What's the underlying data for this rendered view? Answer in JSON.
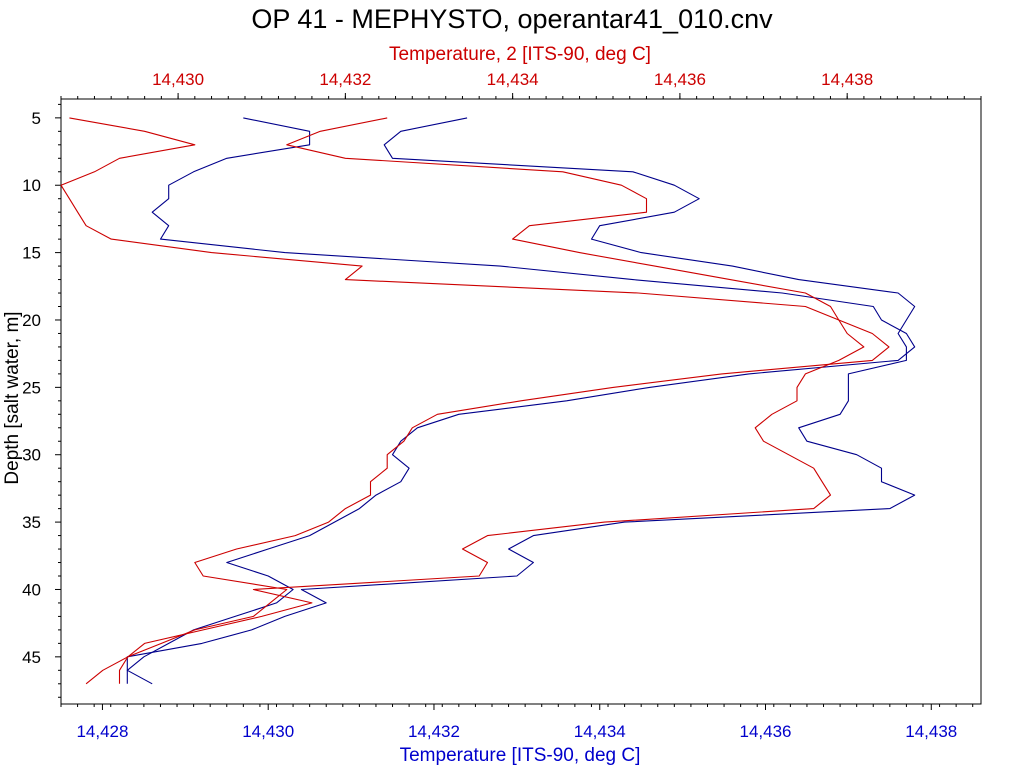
{
  "colors": {
    "background": "#ffffff",
    "axis": "#000000",
    "series1": "#00008b",
    "series2": "#cc0000",
    "bottom_axis_text": "#0000cc",
    "top_axis_text": "#cc0000"
  },
  "chart_data": {
    "type": "line",
    "title": "OP 41 - MEPHYSTO, operantar41_010.cnv",
    "ylabel": "Depth [salt water, m]",
    "x_bottom_label": "Temperature [ITS-90, deg C]",
    "x_top_label": "Temperature, 2 [ITS-90, deg C]",
    "y_reversed": true,
    "ylim": [
      3.6,
      48.5
    ],
    "xlim_bottom": [
      14.4275,
      14.4386
    ],
    "xlim_top": [
      14.4286,
      14.4396
    ],
    "y_ticks": [
      5,
      10,
      15,
      20,
      25,
      30,
      35,
      40,
      45
    ],
    "y_tick_labels": [
      "5",
      "10",
      "15",
      "20",
      "25",
      "30",
      "35",
      "40",
      "45"
    ],
    "x_bottom_ticks": [
      14.428,
      14.43,
      14.432,
      14.434,
      14.436,
      14.438
    ],
    "x_bottom_tick_labels": [
      "14,428",
      "14,430",
      "14,432",
      "14,434",
      "14,436",
      "14,438"
    ],
    "x_top_ticks": [
      14.43,
      14.432,
      14.434,
      14.436,
      14.438
    ],
    "x_top_tick_labels": [
      "14,430",
      "14,432",
      "14,434",
      "14,436",
      "14,438"
    ],
    "series": [
      {
        "axis": "bottom",
        "color": "#00008b",
        "points": [
          [
            14.4324,
            5
          ],
          [
            14.4316,
            6
          ],
          [
            14.4314,
            7
          ],
          [
            14.4315,
            8
          ],
          [
            14.4344,
            9
          ],
          [
            14.4349,
            10
          ],
          [
            14.4352,
            11
          ],
          [
            14.4349,
            12
          ],
          [
            14.434,
            13
          ],
          [
            14.4339,
            14
          ],
          [
            14.4345,
            15
          ],
          [
            14.4356,
            16
          ],
          [
            14.4364,
            17
          ],
          [
            14.4376,
            18
          ],
          [
            14.4378,
            19
          ],
          [
            14.4377,
            20
          ],
          [
            14.4376,
            21
          ],
          [
            14.4377,
            22
          ],
          [
            14.4377,
            23
          ],
          [
            14.437,
            24
          ],
          [
            14.437,
            25
          ],
          [
            14.437,
            26
          ],
          [
            14.4369,
            27
          ],
          [
            14.4364,
            28
          ],
          [
            14.4365,
            29
          ],
          [
            14.4371,
            30
          ],
          [
            14.4374,
            31
          ],
          [
            14.4374,
            32
          ],
          [
            14.4378,
            33
          ],
          [
            14.4375,
            34
          ],
          [
            14.4343,
            35
          ],
          [
            14.4332,
            36
          ],
          [
            14.4329,
            37
          ],
          [
            14.4332,
            38
          ],
          [
            14.433,
            39
          ],
          [
            14.4304,
            40
          ],
          [
            14.4307,
            41
          ],
          [
            14.4302,
            42
          ],
          [
            14.4298,
            43
          ],
          [
            14.4292,
            44
          ],
          [
            14.4283,
            45
          ],
          [
            14.4283,
            46
          ],
          [
            14.4286,
            47
          ]
        ]
      },
      {
        "axis": "bottom",
        "color": "#00008b",
        "points": [
          [
            14.4297,
            5
          ],
          [
            14.4305,
            6
          ],
          [
            14.4305,
            7
          ],
          [
            14.4295,
            8
          ],
          [
            14.4291,
            9
          ],
          [
            14.4288,
            10
          ],
          [
            14.4288,
            11
          ],
          [
            14.4286,
            12
          ],
          [
            14.4288,
            13
          ],
          [
            14.4287,
            14
          ],
          [
            14.4302,
            15
          ],
          [
            14.4328,
            16
          ],
          [
            14.4344,
            17
          ],
          [
            14.4362,
            18
          ],
          [
            14.4373,
            19
          ],
          [
            14.4374,
            20
          ],
          [
            14.4377,
            21
          ],
          [
            14.4378,
            22
          ],
          [
            14.4376,
            23
          ],
          [
            14.4358,
            24
          ],
          [
            14.4346,
            25
          ],
          [
            14.4336,
            26
          ],
          [
            14.4323,
            27
          ],
          [
            14.4318,
            28
          ],
          [
            14.4316,
            29
          ],
          [
            14.4315,
            30
          ],
          [
            14.4317,
            31
          ],
          [
            14.4316,
            32
          ],
          [
            14.4313,
            33
          ],
          [
            14.4311,
            34
          ],
          [
            14.4308,
            35
          ],
          [
            14.4305,
            36
          ],
          [
            14.43,
            37
          ],
          [
            14.4295,
            38
          ],
          [
            14.43,
            39
          ],
          [
            14.4303,
            40
          ],
          [
            14.4301,
            41
          ],
          [
            14.4296,
            42
          ],
          [
            14.4291,
            43
          ],
          [
            14.4288,
            44
          ],
          [
            14.4285,
            45
          ],
          [
            14.4283,
            46
          ],
          [
            14.4283,
            47
          ]
        ]
      },
      {
        "axis": "top",
        "color": "#cc0000",
        "points": [
          [
            14.4325,
            5
          ],
          [
            14.4317,
            6
          ],
          [
            14.4313,
            7
          ],
          [
            14.432,
            8
          ],
          [
            14.4346,
            9
          ],
          [
            14.4353,
            10
          ],
          [
            14.4356,
            11
          ],
          [
            14.4356,
            12
          ],
          [
            14.4342,
            13
          ],
          [
            14.434,
            14
          ],
          [
            14.4348,
            15
          ],
          [
            14.4357,
            16
          ],
          [
            14.4366,
            17
          ],
          [
            14.4375,
            18
          ],
          [
            14.4378,
            19
          ],
          [
            14.4379,
            20
          ],
          [
            14.438,
            21
          ],
          [
            14.4382,
            22
          ],
          [
            14.4379,
            23
          ],
          [
            14.4375,
            24
          ],
          [
            14.4374,
            25
          ],
          [
            14.4374,
            26
          ],
          [
            14.4371,
            27
          ],
          [
            14.4369,
            28
          ],
          [
            14.437,
            29
          ],
          [
            14.4373,
            30
          ],
          [
            14.4376,
            31
          ],
          [
            14.4377,
            32
          ],
          [
            14.4378,
            33
          ],
          [
            14.4376,
            34
          ],
          [
            14.4351,
            35
          ],
          [
            14.4337,
            36
          ],
          [
            14.4334,
            37
          ],
          [
            14.4337,
            38
          ],
          [
            14.4336,
            39
          ],
          [
            14.4309,
            40
          ],
          [
            14.4316,
            41
          ],
          [
            14.431,
            42
          ],
          [
            14.4303,
            43
          ],
          [
            14.4296,
            44
          ],
          [
            14.4294,
            45
          ],
          [
            14.4293,
            46
          ],
          [
            14.4293,
            47
          ]
        ]
      },
      {
        "axis": "top",
        "color": "#cc0000",
        "points": [
          [
            14.4287,
            5
          ],
          [
            14.4296,
            6
          ],
          [
            14.4302,
            7
          ],
          [
            14.4293,
            8
          ],
          [
            14.429,
            9
          ],
          [
            14.4286,
            10
          ],
          [
            14.4287,
            11
          ],
          [
            14.4288,
            12
          ],
          [
            14.4289,
            13
          ],
          [
            14.4292,
            14
          ],
          [
            14.4304,
            15
          ],
          [
            14.4322,
            16
          ],
          [
            14.432,
            17
          ],
          [
            14.4355,
            18
          ],
          [
            14.4375,
            19
          ],
          [
            14.4379,
            20
          ],
          [
            14.4383,
            21
          ],
          [
            14.4385,
            22
          ],
          [
            14.4383,
            23
          ],
          [
            14.4365,
            24
          ],
          [
            14.4352,
            25
          ],
          [
            14.4341,
            26
          ],
          [
            14.4331,
            27
          ],
          [
            14.4328,
            28
          ],
          [
            14.4327,
            29
          ],
          [
            14.4325,
            30
          ],
          [
            14.4325,
            31
          ],
          [
            14.4323,
            32
          ],
          [
            14.4323,
            33
          ],
          [
            14.432,
            34
          ],
          [
            14.4318,
            35
          ],
          [
            14.4314,
            36
          ],
          [
            14.4307,
            37
          ],
          [
            14.4302,
            38
          ],
          [
            14.4303,
            39
          ],
          [
            14.4313,
            40
          ],
          [
            14.4311,
            41
          ],
          [
            14.4309,
            42
          ],
          [
            14.4302,
            43
          ],
          [
            14.4298,
            44
          ],
          [
            14.4294,
            45
          ],
          [
            14.4291,
            46
          ],
          [
            14.4289,
            47
          ]
        ]
      }
    ]
  }
}
